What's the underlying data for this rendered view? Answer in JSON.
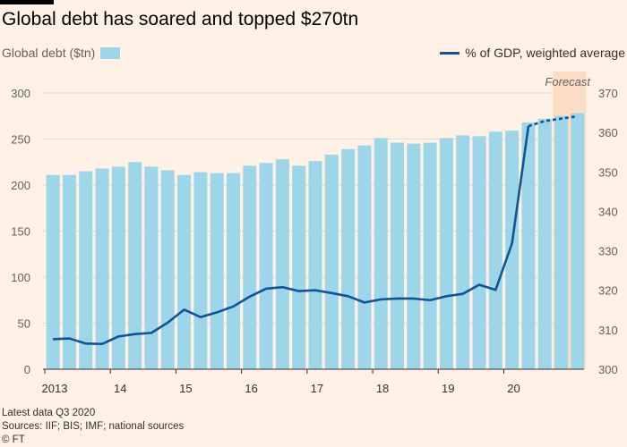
{
  "chart_data": {
    "type": "bar",
    "title": "Global debt has soared and topped $270tn",
    "x": [
      "2013 Q1",
      "2013 Q2",
      "2013 Q3",
      "2013 Q4",
      "2014 Q1",
      "2014 Q2",
      "2014 Q3",
      "2014 Q4",
      "2015 Q1",
      "2015 Q2",
      "2015 Q3",
      "2015 Q4",
      "2016 Q1",
      "2016 Q2",
      "2016 Q3",
      "2016 Q4",
      "2017 Q1",
      "2017 Q2",
      "2017 Q3",
      "2017 Q4",
      "2018 Q1",
      "2018 Q2",
      "2018 Q3",
      "2018 Q4",
      "2019 Q1",
      "2019 Q2",
      "2019 Q3",
      "2019 Q4",
      "2020 Q1",
      "2020 Q2",
      "2020 Q3",
      "2020 Q4",
      "2021 Q1"
    ],
    "x_tick_labels": [
      "2013",
      "14",
      "15",
      "16",
      "17",
      "18",
      "19",
      "20"
    ],
    "series": [
      {
        "name": "Global debt ($tn)",
        "type": "bar",
        "axis": "left",
        "color": "#9dd6e9",
        "values": [
          211,
          211,
          215,
          218,
          220,
          225,
          220,
          216,
          211,
          214,
          213,
          213,
          221,
          224,
          228,
          221,
          226,
          233,
          239,
          243,
          251,
          246,
          245,
          246,
          251,
          254,
          253,
          258,
          259,
          268,
          272,
          275,
          278
        ]
      },
      {
        "name": "% of GDP, weighted average",
        "type": "line",
        "axis": "right",
        "color": "#0f5499",
        "values": [
          307.6,
          307.8,
          306.5,
          306.4,
          308.3,
          308.9,
          309.2,
          311.8,
          315.1,
          313.2,
          314.4,
          315.9,
          318.4,
          320.4,
          320.8,
          319.8,
          320.0,
          319.3,
          318.5,
          316.9,
          317.7,
          317.9,
          317.9,
          317.5,
          318.5,
          319.1,
          321.4,
          320.1,
          331.9,
          361.6,
          362.9,
          363.5,
          364.1
        ],
        "forecast_from_index": 29
      }
    ],
    "left_axis": {
      "ylim": [
        0,
        300
      ],
      "ticks": [
        0,
        50,
        100,
        150,
        200,
        250,
        300
      ]
    },
    "right_axis": {
      "ylim": [
        300,
        370
      ],
      "ticks": [
        300,
        310,
        320,
        330,
        340,
        350,
        360,
        370
      ]
    },
    "forecast_region": {
      "from": "2020 Q4",
      "to": "2021 Q1",
      "label": "Forecast",
      "color": "#fbdcc4"
    },
    "grid": true,
    "legend_placement": "top"
  },
  "footer": {
    "note": "Latest data Q3 2020",
    "sources": "Sources: IIF; BIS; IMF; national sources",
    "credit": "© FT"
  }
}
